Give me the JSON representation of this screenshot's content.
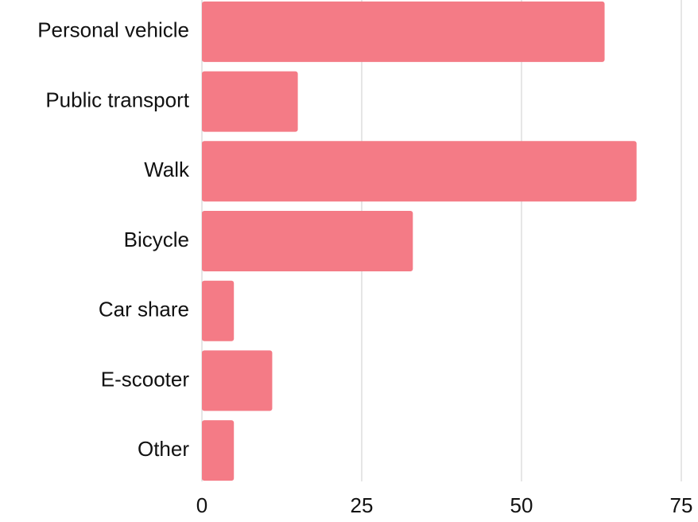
{
  "chart_data": {
    "type": "bar",
    "orientation": "horizontal",
    "categories": [
      "Personal vehicle",
      "Public transport",
      "Walk",
      "Bicycle",
      "Car share",
      "E-scooter",
      "Other"
    ],
    "values": [
      63,
      15,
      68,
      33,
      5,
      11,
      5
    ],
    "color": "#f47b86",
    "xlim": [
      0,
      75
    ],
    "xticks": [
      0,
      25,
      50,
      75
    ],
    "grid": true
  }
}
